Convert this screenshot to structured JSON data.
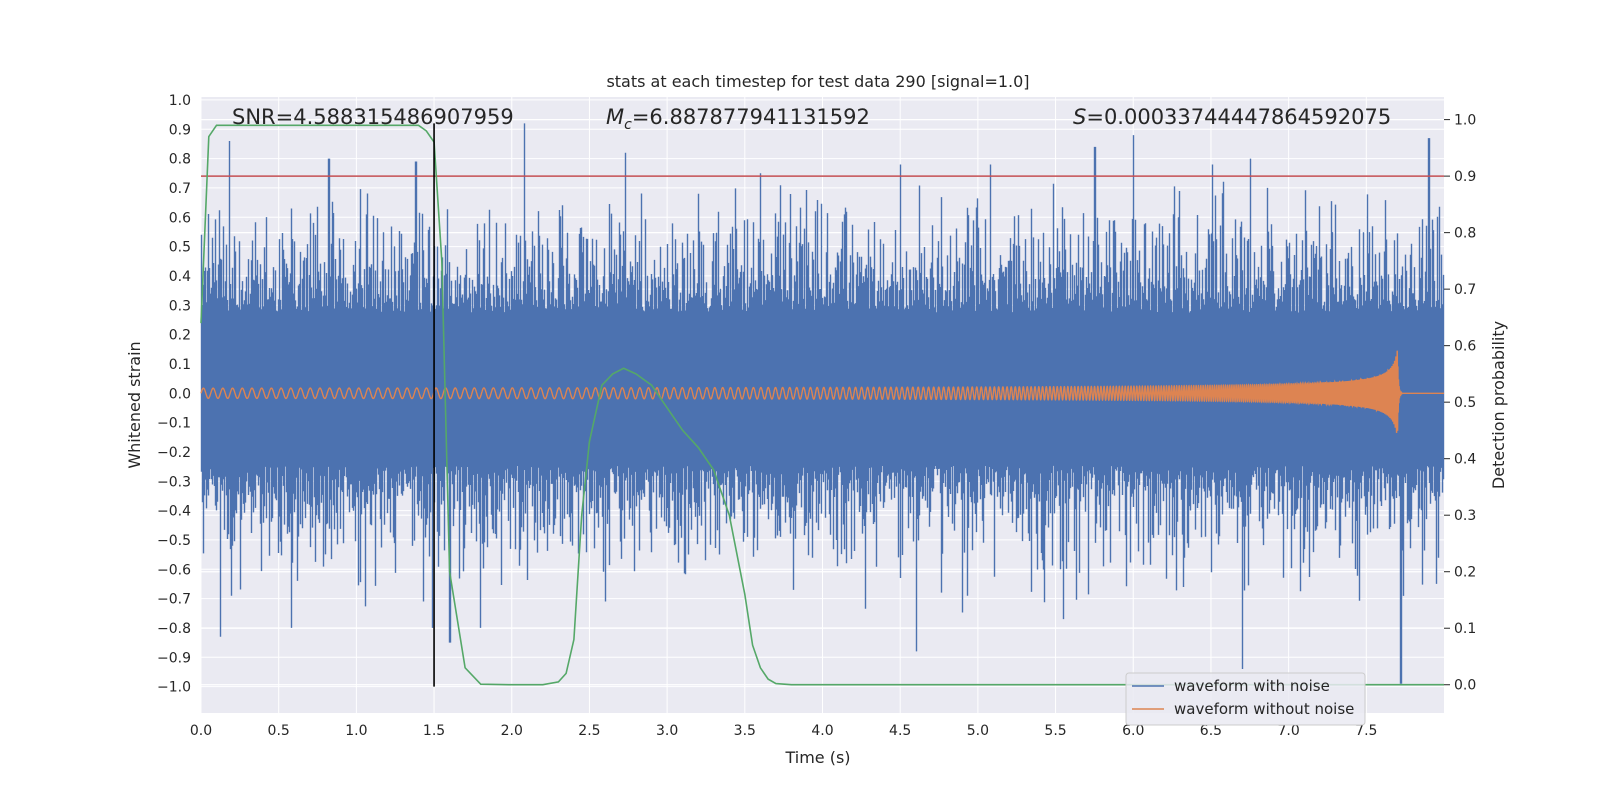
{
  "chart_data": {
    "type": "line",
    "title": "stats at each timestep for test data 290 [signal=1.0]",
    "xlabel": "Time (s)",
    "ylabel_left": "Whitened strain",
    "ylabel_right": "Detection probability",
    "xlim": [
      0.0,
      8.0
    ],
    "ylim_left": [
      -1.09,
      1.01
    ],
    "ylim_right": [
      -0.05,
      1.04
    ],
    "x_ticks": [
      0.0,
      0.5,
      1.0,
      1.5,
      2.0,
      2.5,
      3.0,
      3.5,
      4.0,
      4.5,
      5.0,
      5.5,
      6.0,
      6.5,
      7.0,
      7.5
    ],
    "x_tick_labels": [
      "0.0",
      "0.5",
      "1.0",
      "1.5",
      "2.0",
      "2.5",
      "3.0",
      "3.5",
      "4.0",
      "4.5",
      "5.0",
      "5.5",
      "6.0",
      "6.5",
      "7.0",
      "7.5"
    ],
    "y_left_ticks": [
      1.0,
      0.9,
      0.8,
      0.7,
      0.6,
      0.5,
      0.4,
      0.3,
      0.2,
      0.1,
      0.0,
      -0.1,
      -0.2,
      -0.3,
      -0.4,
      -0.5,
      -0.6,
      -0.7,
      -0.8,
      -0.9,
      -1.0
    ],
    "y_left_tick_labels": [
      "1.0",
      "0.9",
      "0.8",
      "0.7",
      "0.6",
      "0.5",
      "0.4",
      "0.3",
      "0.2",
      "0.1",
      "0.0",
      "−0.1",
      "−0.2",
      "−0.3",
      "−0.4",
      "−0.5",
      "−0.6",
      "−0.7",
      "−0.8",
      "−0.9",
      "−1.0"
    ],
    "y_right_ticks": [
      1.0,
      0.9,
      0.8,
      0.7,
      0.6,
      0.5,
      0.4,
      0.3,
      0.2,
      0.1,
      0.0
    ],
    "y_right_tick_labels": [
      "1.0",
      "0.9",
      "0.8",
      "0.7",
      "0.6",
      "0.5",
      "0.4",
      "0.3",
      "0.2",
      "0.1",
      "0.0"
    ],
    "annotations": {
      "snr": "SNR=4.588315486907959",
      "mc_symbol": "M",
      "mc_sub": "c",
      "mc_value": "=6.887877941131592",
      "s_symbol": "S",
      "s_value": "=0.00033744447864592075"
    },
    "threshold": {
      "axis": "right",
      "value": 0.9,
      "color": "#c44e52"
    },
    "vline": {
      "x": 1.5,
      "y_from": -1.0,
      "y_to": 0.92,
      "color": "#000000"
    },
    "series": [
      {
        "name": "waveform with noise",
        "axis": "left",
        "color": "#4c72b0",
        "x_range": [
          0.0,
          8.0
        ],
        "envelope_typical": [
          -0.45,
          0.5
        ],
        "notable_peaks": [
          {
            "x": 0.18,
            "y": 0.86
          },
          {
            "x": 0.58,
            "y": 0.63
          },
          {
            "x": 0.82,
            "y": 0.8
          },
          {
            "x": 1.38,
            "y": 0.79
          },
          {
            "x": 2.08,
            "y": 0.92
          },
          {
            "x": 2.73,
            "y": 0.82
          },
          {
            "x": 3.6,
            "y": 0.75
          },
          {
            "x": 4.5,
            "y": 0.78
          },
          {
            "x": 5.75,
            "y": 0.84
          },
          {
            "x": 6.0,
            "y": 0.88
          },
          {
            "x": 6.75,
            "y": 0.8
          },
          {
            "x": 7.9,
            "y": 0.87
          }
        ],
        "notable_troughs": [
          {
            "x": 0.12,
            "y": -0.83
          },
          {
            "x": 0.58,
            "y": -0.8
          },
          {
            "x": 1.43,
            "y": -0.71
          },
          {
            "x": 1.6,
            "y": -0.85
          },
          {
            "x": 2.6,
            "y": -0.71
          },
          {
            "x": 4.6,
            "y": -0.88
          },
          {
            "x": 5.55,
            "y": -0.77
          },
          {
            "x": 6.7,
            "y": -0.94
          },
          {
            "x": 7.72,
            "y": -0.99
          },
          {
            "x": 7.95,
            "y": -0.65
          }
        ]
      },
      {
        "name": "waveform without noise",
        "axis": "left",
        "color": "#dd8452",
        "description_values": {
          "amplitude_start": 0.012,
          "amplitude_peak": 0.16,
          "merger_time": 7.7,
          "start_freq_hz": 16,
          "end_freq_hz": 120
        }
      },
      {
        "name": "Detection probability",
        "axis": "right",
        "color": "#55a868",
        "x": [
          0.0,
          0.05,
          0.1,
          0.2,
          0.4,
          0.8,
          1.2,
          1.4,
          1.45,
          1.5,
          1.55,
          1.6,
          1.7,
          1.8,
          2.0,
          2.2,
          2.3,
          2.35,
          2.4,
          2.45,
          2.5,
          2.58,
          2.65,
          2.72,
          2.8,
          2.9,
          3.0,
          3.1,
          3.2,
          3.3,
          3.4,
          3.5,
          3.55,
          3.6,
          3.65,
          3.7,
          3.8,
          4.0,
          5.0,
          6.0,
          7.0,
          7.5,
          8.0
        ],
        "y": [
          0.64,
          0.97,
          0.99,
          0.99,
          0.99,
          0.99,
          0.99,
          0.99,
          0.98,
          0.96,
          0.75,
          0.2,
          0.03,
          0.001,
          0.0,
          0.0,
          0.005,
          0.02,
          0.08,
          0.3,
          0.43,
          0.53,
          0.55,
          0.56,
          0.55,
          0.53,
          0.49,
          0.45,
          0.42,
          0.38,
          0.3,
          0.16,
          0.07,
          0.03,
          0.01,
          0.002,
          0.0,
          0.0,
          0.0,
          0.0,
          0.0,
          0.0,
          0.0
        ]
      }
    ],
    "legend": {
      "placement": "lower-right",
      "entries": [
        {
          "label": "waveform with noise",
          "color": "#4c72b0"
        },
        {
          "label": "waveform without noise",
          "color": "#dd8452"
        }
      ]
    },
    "grid": true
  }
}
